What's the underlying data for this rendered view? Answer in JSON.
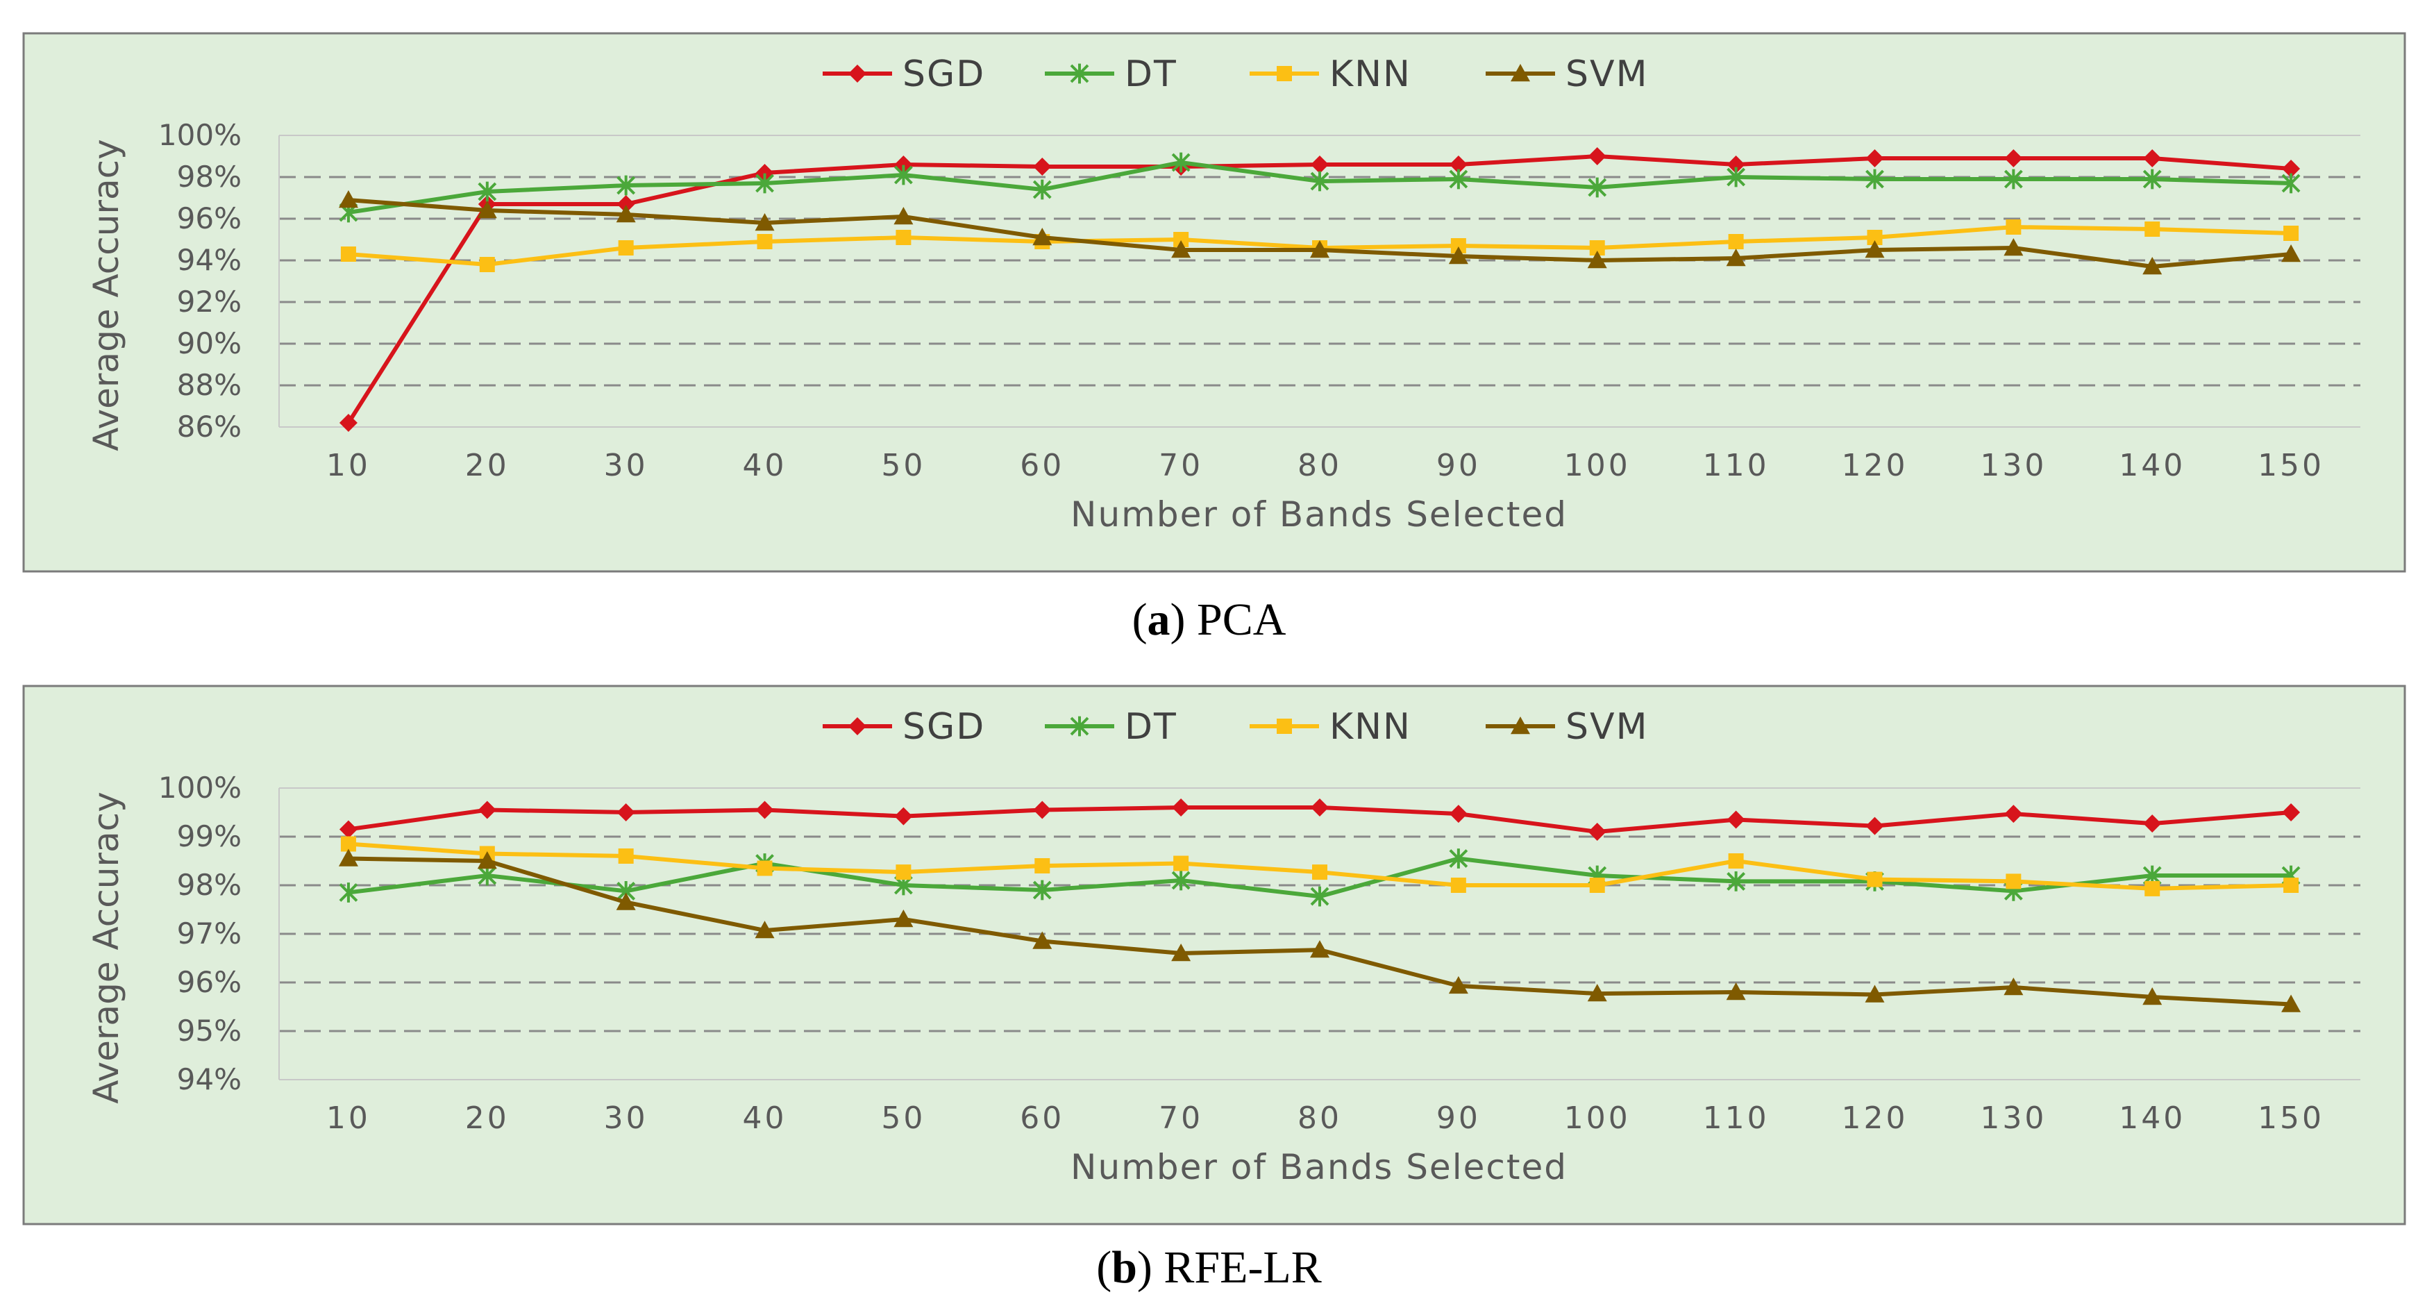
{
  "chart_data": [
    {
      "id": "a",
      "type": "line",
      "title": "",
      "xlabel": "Number of Bands Selected",
      "ylabel": "Average Accuracy",
      "categories": [
        "10",
        "20",
        "30",
        "40",
        "50",
        "60",
        "70",
        "80",
        "90",
        "100",
        "110",
        "120",
        "130",
        "140",
        "150"
      ],
      "yticks": [
        "86%",
        "88%",
        "90%",
        "92%",
        "94%",
        "96%",
        "98%",
        "100%"
      ],
      "ylim": [
        86,
        100
      ],
      "ystep": 2,
      "grid": "horizontal dashed",
      "legend": "top-center",
      "series": [
        {
          "name": "SGD",
          "color": "#d7141c",
          "marker": "diamond",
          "values": [
            86.2,
            96.7,
            96.7,
            98.2,
            98.6,
            98.5,
            98.5,
            98.6,
            98.6,
            99.0,
            98.6,
            98.9,
            98.9,
            98.9,
            98.4
          ]
        },
        {
          "name": "DT",
          "color": "#4ba83a",
          "marker": "star",
          "values": [
            96.3,
            97.3,
            97.6,
            97.7,
            98.1,
            97.4,
            98.7,
            97.8,
            97.9,
            97.5,
            98.0,
            97.9,
            97.9,
            97.9,
            97.7
          ]
        },
        {
          "name": "KNN",
          "color": "#fcbf14",
          "marker": "square",
          "values": [
            94.3,
            93.8,
            94.6,
            94.9,
            95.1,
            94.9,
            95.0,
            94.6,
            94.7,
            94.6,
            94.9,
            95.1,
            95.6,
            95.5,
            95.3
          ]
        },
        {
          "name": "SVM",
          "color": "#7f5a00",
          "marker": "triangle",
          "values": [
            96.9,
            96.4,
            96.2,
            95.8,
            96.1,
            95.1,
            94.5,
            94.5,
            94.2,
            94.0,
            94.1,
            94.5,
            94.6,
            93.7,
            94.3
          ]
        }
      ]
    },
    {
      "id": "b",
      "type": "line",
      "title": "",
      "xlabel": "Number of Bands Selected",
      "ylabel": "Average Accuracy",
      "categories": [
        "10",
        "20",
        "30",
        "40",
        "50",
        "60",
        "70",
        "80",
        "90",
        "100",
        "110",
        "120",
        "130",
        "140",
        "150"
      ],
      "yticks": [
        "94%",
        "95%",
        "96%",
        "97%",
        "98%",
        "99%",
        "100%"
      ],
      "ylim": [
        94,
        100
      ],
      "ystep": 1,
      "grid": "horizontal dashed",
      "legend": "top-center",
      "series": [
        {
          "name": "SGD",
          "color": "#d7141c",
          "marker": "diamond",
          "values": [
            99.15,
            99.55,
            99.5,
            99.55,
            99.42,
            99.55,
            99.6,
            99.6,
            99.47,
            99.1,
            99.35,
            99.22,
            99.47,
            99.27,
            99.5
          ]
        },
        {
          "name": "DT",
          "color": "#4ba83a",
          "marker": "star",
          "values": [
            97.85,
            98.2,
            97.88,
            98.45,
            98.0,
            97.9,
            98.1,
            97.77,
            98.55,
            98.2,
            98.08,
            98.08,
            97.88,
            98.2,
            98.2
          ]
        },
        {
          "name": "KNN",
          "color": "#fcbf14",
          "marker": "square",
          "values": [
            98.85,
            98.65,
            98.6,
            98.35,
            98.27,
            98.4,
            98.45,
            98.27,
            98.0,
            98.0,
            98.5,
            98.12,
            98.08,
            97.93,
            98.0
          ]
        },
        {
          "name": "SVM",
          "color": "#7f5a00",
          "marker": "triangle",
          "values": [
            98.55,
            98.5,
            97.65,
            97.07,
            97.3,
            96.85,
            96.6,
            96.67,
            95.93,
            95.77,
            95.8,
            95.75,
            95.9,
            95.7,
            95.55
          ]
        }
      ]
    }
  ],
  "captions": {
    "a": {
      "letter": "a",
      "text": "PCA"
    },
    "b": {
      "letter": "b",
      "text": "RFE-LR"
    }
  }
}
